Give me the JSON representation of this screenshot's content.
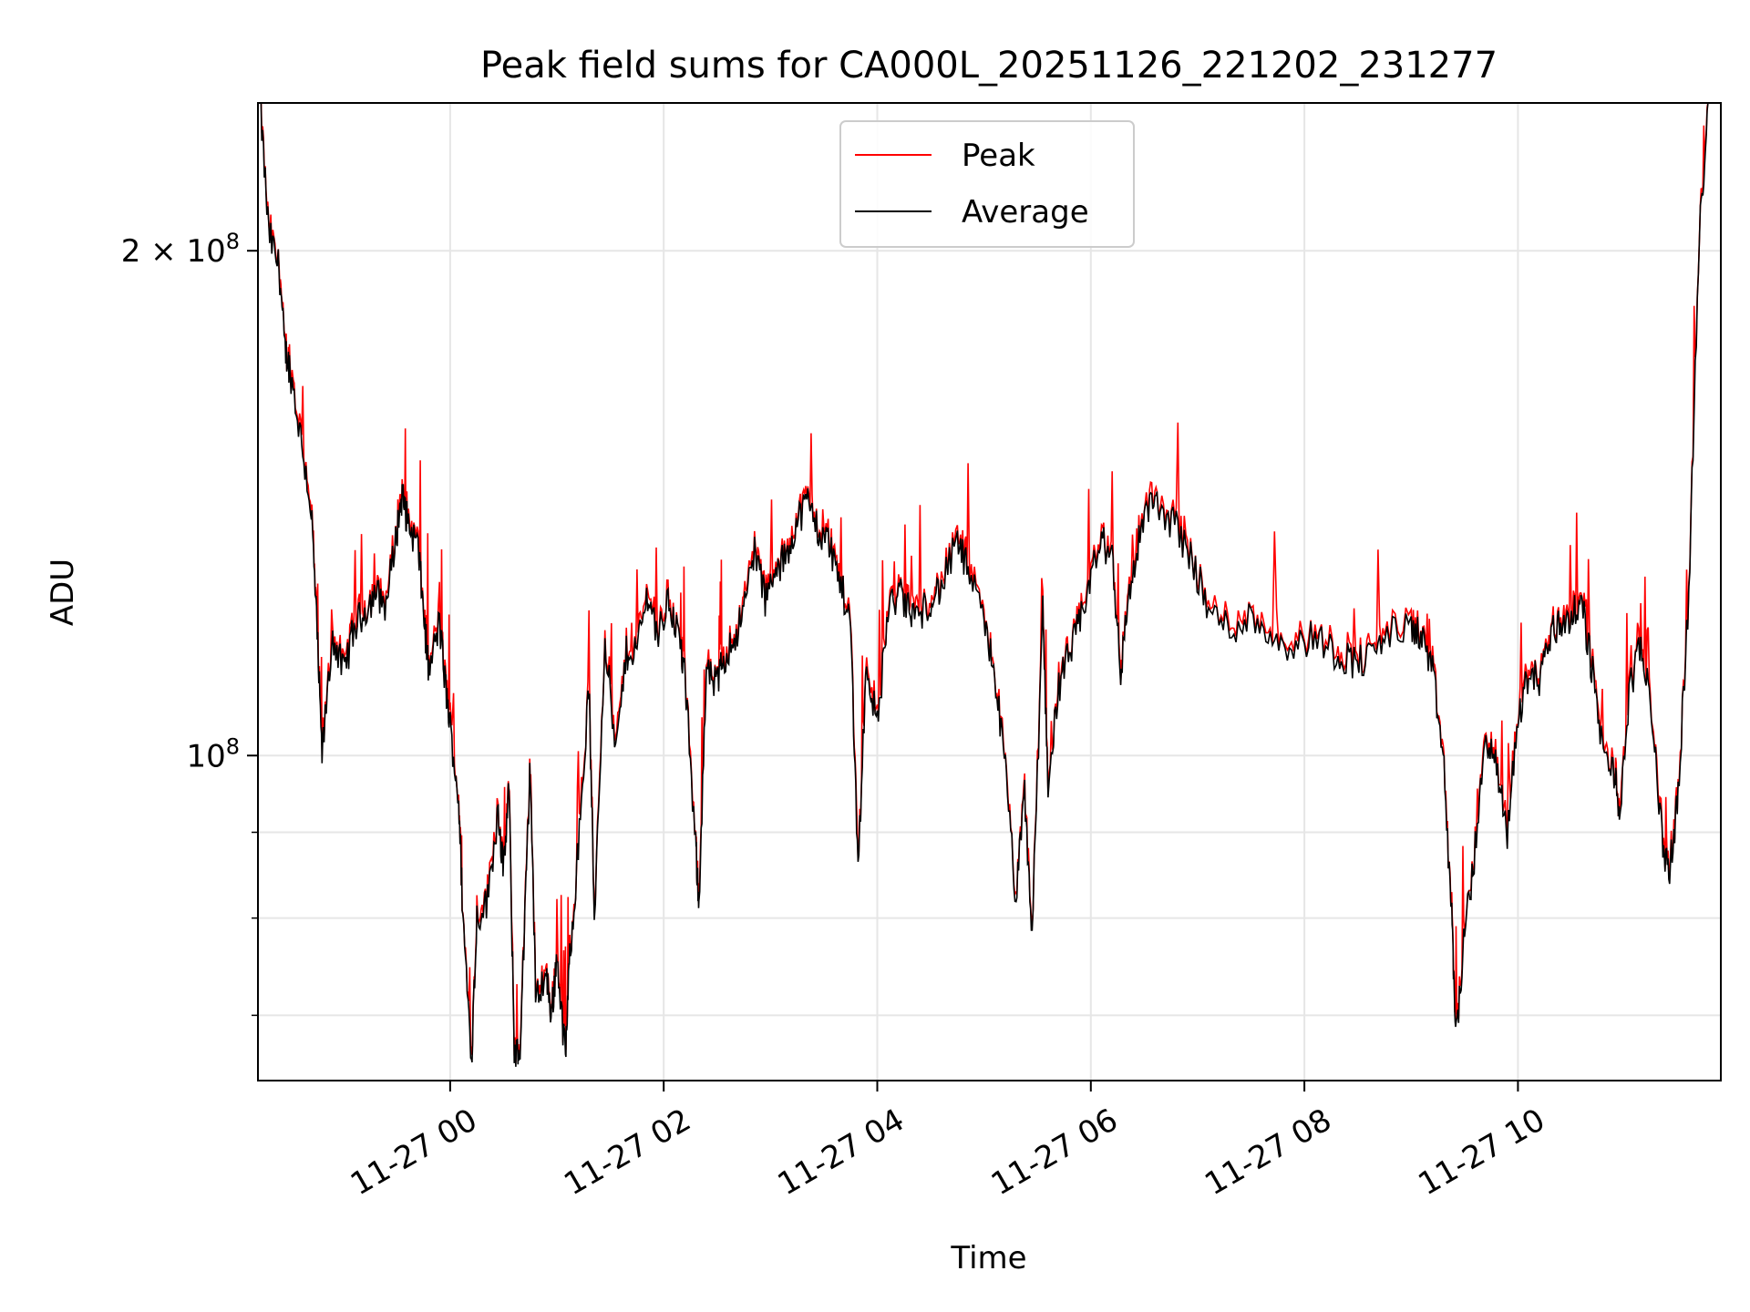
{
  "chart_data": {
    "type": "line",
    "title": "Peak field sums for CA000L_20251126_221202_231277",
    "xlabel": "Time",
    "ylabel": "ADU",
    "x_unit": "hours since 11-27 00:00",
    "xlim": [
      -1.8,
      11.9
    ],
    "ylim": [
      64000000,
      245000000
    ],
    "yscale": "log",
    "grid": true,
    "legend_position": "top-center",
    "x_ticks": [
      {
        "value": 0,
        "label": "11-27 00"
      },
      {
        "value": 2,
        "label": "11-27 02"
      },
      {
        "value": 4,
        "label": "11-27 04"
      },
      {
        "value": 6,
        "label": "11-27 06"
      },
      {
        "value": 8,
        "label": "11-27 08"
      },
      {
        "value": 10,
        "label": "11-27 10"
      }
    ],
    "y_ticks_major": [
      {
        "value": 100000000,
        "label_base": "10",
        "label_exp": "8"
      },
      {
        "value": 200000000,
        "label_base": "2 × 10",
        "label_exp": "8"
      }
    ],
    "y_ticks_minor": [
      70000000,
      80000000,
      90000000
    ],
    "series": [
      {
        "name": "Peak",
        "color": "#ff0000"
      },
      {
        "name": "Average",
        "color": "#000000"
      }
    ],
    "average_points": [
      [
        -1.78,
        245000000
      ],
      [
        -1.7,
        205000000
      ],
      [
        -1.6,
        195000000
      ],
      [
        -1.55,
        175000000
      ],
      [
        -1.5,
        170000000
      ],
      [
        -1.4,
        155000000
      ],
      [
        -1.3,
        140000000
      ],
      [
        -1.25,
        120000000
      ],
      [
        -1.2,
        100000000
      ],
      [
        -1.1,
        118000000
      ],
      [
        -1.0,
        112000000
      ],
      [
        -0.9,
        119000000
      ],
      [
        -0.8,
        122000000
      ],
      [
        -0.7,
        125000000
      ],
      [
        -0.6,
        123000000
      ],
      [
        -0.5,
        136000000
      ],
      [
        -0.45,
        143000000
      ],
      [
        -0.4,
        138000000
      ],
      [
        -0.3,
        133000000
      ],
      [
        -0.25,
        122000000
      ],
      [
        -0.2,
        112000000
      ],
      [
        -0.1,
        120000000
      ],
      [
        -0.05,
        111000000
      ],
      [
        0.0,
        104000000
      ],
      [
        0.08,
        94000000
      ],
      [
        0.12,
        80000000
      ],
      [
        0.2,
        66000000
      ],
      [
        0.25,
        80000000
      ],
      [
        0.35,
        82000000
      ],
      [
        0.45,
        93000000
      ],
      [
        0.5,
        85000000
      ],
      [
        0.55,
        96000000
      ],
      [
        0.6,
        67000000
      ],
      [
        0.65,
        66000000
      ],
      [
        0.7,
        80000000
      ],
      [
        0.75,
        99000000
      ],
      [
        0.8,
        72000000
      ],
      [
        0.9,
        74000000
      ],
      [
        0.95,
        70000000
      ],
      [
        1.0,
        76000000
      ],
      [
        1.08,
        66000000
      ],
      [
        1.12,
        76000000
      ],
      [
        1.2,
        88000000
      ],
      [
        1.3,
        110000000
      ],
      [
        1.35,
        80000000
      ],
      [
        1.45,
        118000000
      ],
      [
        1.55,
        100000000
      ],
      [
        1.65,
        115000000
      ],
      [
        1.75,
        116000000
      ],
      [
        1.85,
        125000000
      ],
      [
        1.95,
        118000000
      ],
      [
        2.05,
        124000000
      ],
      [
        2.15,
        117000000
      ],
      [
        2.2,
        111000000
      ],
      [
        2.3,
        88000000
      ],
      [
        2.33,
        82000000
      ],
      [
        2.4,
        112000000
      ],
      [
        2.5,
        110000000
      ],
      [
        2.55,
        114000000
      ],
      [
        2.65,
        117000000
      ],
      [
        2.75,
        122000000
      ],
      [
        2.85,
        133000000
      ],
      [
        2.95,
        124000000
      ],
      [
        3.05,
        128000000
      ],
      [
        3.15,
        132000000
      ],
      [
        3.25,
        138000000
      ],
      [
        3.35,
        142000000
      ],
      [
        3.45,
        136000000
      ],
      [
        3.55,
        134000000
      ],
      [
        3.65,
        127000000
      ],
      [
        3.75,
        120000000
      ],
      [
        3.82,
        86000000
      ],
      [
        3.9,
        114000000
      ],
      [
        4.0,
        104000000
      ],
      [
        4.1,
        122000000
      ],
      [
        4.2,
        125000000
      ],
      [
        4.3,
        122000000
      ],
      [
        4.4,
        121000000
      ],
      [
        4.5,
        124000000
      ],
      [
        4.6,
        126000000
      ],
      [
        4.75,
        134000000
      ],
      [
        4.85,
        129000000
      ],
      [
        5.0,
        120000000
      ],
      [
        5.1,
        112000000
      ],
      [
        5.2,
        98000000
      ],
      [
        5.3,
        82000000
      ],
      [
        5.38,
        95000000
      ],
      [
        5.45,
        78000000
      ],
      [
        5.55,
        122000000
      ],
      [
        5.6,
        96000000
      ],
      [
        5.7,
        110000000
      ],
      [
        5.8,
        115000000
      ],
      [
        5.9,
        120000000
      ],
      [
        6.0,
        128000000
      ],
      [
        6.1,
        134000000
      ],
      [
        6.2,
        132000000
      ],
      [
        6.28,
        112000000
      ],
      [
        6.35,
        124000000
      ],
      [
        6.45,
        134000000
      ],
      [
        6.55,
        142000000
      ],
      [
        6.65,
        140000000
      ],
      [
        6.8,
        137000000
      ],
      [
        6.95,
        131000000
      ],
      [
        7.1,
        122000000
      ],
      [
        7.3,
        119000000
      ],
      [
        7.5,
        121000000
      ],
      [
        7.7,
        118000000
      ],
      [
        7.9,
        116000000
      ],
      [
        8.1,
        118000000
      ],
      [
        8.3,
        115000000
      ],
      [
        8.45,
        114000000
      ],
      [
        8.6,
        114000000
      ],
      [
        8.75,
        118000000
      ],
      [
        9.0,
        119000000
      ],
      [
        9.1,
        118000000
      ],
      [
        9.2,
        112000000
      ],
      [
        9.3,
        100000000
      ],
      [
        9.38,
        80000000
      ],
      [
        9.42,
        68000000
      ],
      [
        9.5,
        78000000
      ],
      [
        9.6,
        88000000
      ],
      [
        9.7,
        103000000
      ],
      [
        9.8,
        98000000
      ],
      [
        9.9,
        90000000
      ],
      [
        10.0,
        105000000
      ],
      [
        10.1,
        112000000
      ],
      [
        10.2,
        111000000
      ],
      [
        10.3,
        118000000
      ],
      [
        10.4,
        120000000
      ],
      [
        10.5,
        121000000
      ],
      [
        10.6,
        123000000
      ],
      [
        10.7,
        112000000
      ],
      [
        10.8,
        100000000
      ],
      [
        10.9,
        98000000
      ],
      [
        10.95,
        92000000
      ],
      [
        11.05,
        110000000
      ],
      [
        11.15,
        116000000
      ],
      [
        11.25,
        107000000
      ],
      [
        11.35,
        89000000
      ],
      [
        11.42,
        85000000
      ],
      [
        11.5,
        95000000
      ],
      [
        11.6,
        125000000
      ],
      [
        11.7,
        205000000
      ],
      [
        11.78,
        245000000
      ]
    ]
  }
}
